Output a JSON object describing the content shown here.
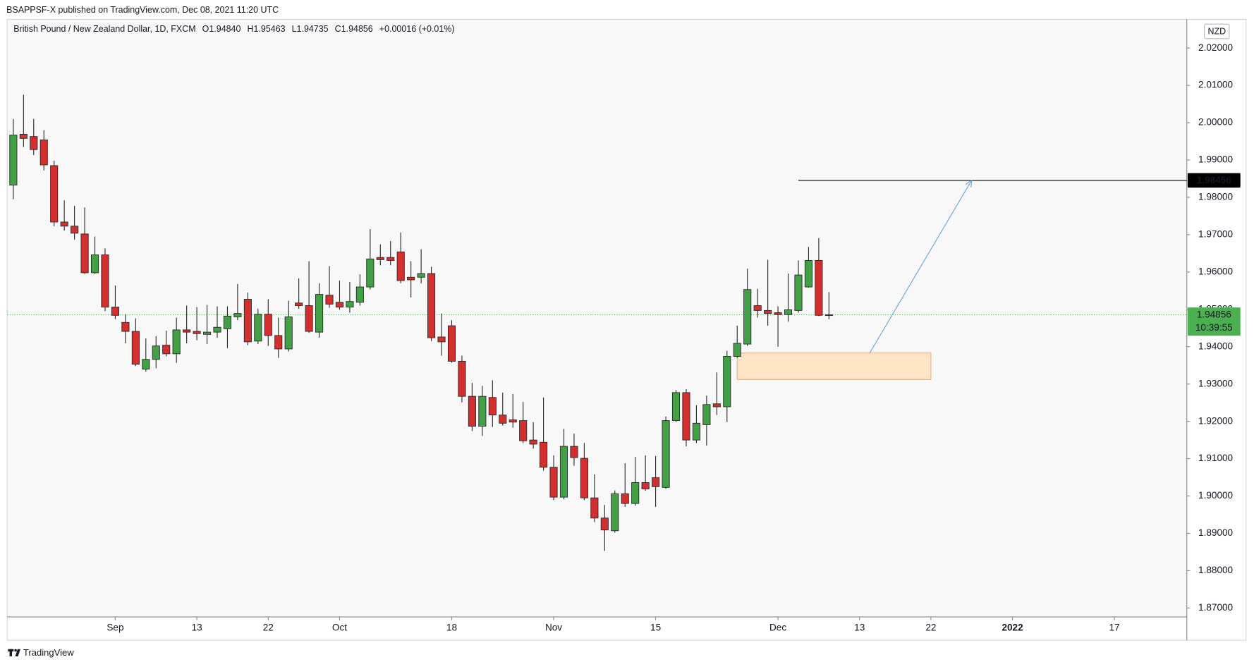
{
  "chart_data": {
    "type": "candlestick",
    "header": "BSAPPSF-X published on TradingView.com, Dec 08, 2021 11:20 UTC",
    "legend": {
      "symbol": "British Pound / New Zealand Dollar, 1D, FXCM",
      "fields": [
        [
          "O",
          "1.94840"
        ],
        [
          "H",
          "1.95463"
        ],
        [
          "L",
          "1.94735"
        ],
        [
          "C",
          "1.94856"
        ]
      ],
      "change": "+0.00016 (+0.01%)"
    },
    "currency": "NZD",
    "brand": "TradingView",
    "up_color": "#43a047",
    "down_color": "#d32f2f",
    "border_color": "#2a2a2a",
    "open": [
      1.9833,
      1.9969,
      1.9963,
      1.9954,
      1.9885,
      1.9734,
      1.9723,
      1.9702,
      1.9598,
      1.9646,
      1.9506,
      1.9465,
      1.9441,
      1.934,
      1.9366,
      1.9404,
      1.9381,
      1.9445,
      1.9441,
      1.9433,
      1.9439,
      1.9448,
      1.948,
      1.9527,
      1.9415,
      1.9487,
      1.943,
      1.9394,
      1.9517,
      1.951,
      1.9439,
      1.9538,
      1.9519,
      1.9506,
      1.9519,
      1.956,
      1.9639,
      1.9639,
      1.9654,
      1.9586,
      1.9586,
      1.9596,
      1.9426,
      1.9456,
      1.9361,
      1.9267,
      1.9187,
      1.9264,
      1.9217,
      1.9204,
      1.9202,
      1.915,
      1.9144,
      1.9077,
      1.8997,
      1.9133,
      1.9101,
      1.8995,
      1.8941,
      1.8907,
      1.9006,
      1.898,
      1.9036,
      1.9049,
      1.9023,
      1.9202,
      1.9277,
      1.915,
      1.9191,
      1.9247,
      1.9239,
      1.9374,
      1.9407,
      1.951,
      1.9497,
      1.9491,
      1.9486,
      1.9497,
      1.956,
      1.9631,
      1.9484
    ],
    "high": [
      2.001,
      2.0075,
      2.001,
      1.998,
      1.9898,
      1.9792,
      1.9777,
      1.9773,
      1.9695,
      1.9663,
      1.9564,
      1.9487,
      1.9476,
      1.9422,
      1.9428,
      1.9443,
      1.9478,
      1.951,
      1.9506,
      1.9512,
      1.9508,
      1.9508,
      1.9568,
      1.9545,
      1.9502,
      1.9527,
      1.9478,
      1.9523,
      1.9583,
      1.9629,
      1.957,
      1.9616,
      1.9577,
      1.9573,
      1.9594,
      1.9715,
      1.9674,
      1.9683,
      1.9706,
      1.9629,
      1.9661,
      1.9614,
      1.9489,
      1.9471,
      1.9376,
      1.9303,
      1.9295,
      1.931,
      1.9277,
      1.9273,
      1.9252,
      1.9198,
      1.9264,
      1.9109,
      1.918,
      1.9167,
      1.9142,
      1.9058,
      1.8976,
      1.9015,
      1.9088,
      1.9105,
      1.9109,
      1.9107,
      1.9213,
      1.9284,
      1.9286,
      1.9243,
      1.9269,
      1.9331,
      1.9389,
      1.9456,
      1.9609,
      1.9555,
      1.9633,
      1.9508,
      1.9596,
      1.9631,
      1.9667,
      1.9691,
      1.95463
    ],
    "low": [
      1.9795,
      1.9935,
      1.9913,
      1.9872,
      1.9723,
      1.9711,
      1.9687,
      1.9595,
      1.9595,
      1.9495,
      1.9474,
      1.9409,
      1.9348,
      1.9333,
      1.9342,
      1.9374,
      1.9357,
      1.9409,
      1.9417,
      1.9407,
      1.9424,
      1.9396,
      1.9471,
      1.9404,
      1.9407,
      1.9402,
      1.937,
      1.9387,
      1.9502,
      1.9437,
      1.9424,
      1.9504,
      1.9499,
      1.9491,
      1.951,
      1.9553,
      1.9618,
      1.9618,
      1.957,
      1.9532,
      1.957,
      1.9415,
      1.9376,
      1.9357,
      1.9251,
      1.9174,
      1.9161,
      1.9185,
      1.9189,
      1.9183,
      1.9142,
      1.9127,
      1.9068,
      1.8989,
      1.8991,
      1.9081,
      1.8989,
      1.893,
      1.8853,
      1.8902,
      1.8971,
      1.8974,
      1.9014,
      1.8971,
      1.9019,
      1.9198,
      1.9133,
      1.9142,
      1.9135,
      1.9217,
      1.9198,
      1.937,
      1.9402,
      1.9478,
      1.9456,
      1.94,
      1.9467,
      1.9491,
      1.9558,
      1.9482,
      1.94735
    ],
    "close": [
      1.9967,
      1.9958,
      1.9928,
      1.9887,
      1.9734,
      1.9723,
      1.9704,
      1.9598,
      1.9646,
      1.9506,
      1.9484,
      1.9441,
      1.9353,
      1.9366,
      1.9402,
      1.9381,
      1.9445,
      1.9439,
      1.9435,
      1.9439,
      1.9452,
      1.9482,
      1.9489,
      1.9413,
      1.9487,
      1.943,
      1.9394,
      1.948,
      1.951,
      1.9441,
      1.954,
      1.9514,
      1.9506,
      1.9521,
      1.956,
      1.9635,
      1.9633,
      1.9631,
      1.9577,
      1.9579,
      1.9596,
      1.9424,
      1.9413,
      1.9361,
      1.9267,
      1.9187,
      1.9267,
      1.9217,
      1.9195,
      1.9198,
      1.9148,
      1.9139,
      1.9077,
      1.8997,
      1.9133,
      1.9103,
      1.8995,
      1.8941,
      1.8909,
      1.9006,
      1.898,
      1.9036,
      1.9019,
      1.9025,
      1.9202,
      1.9277,
      1.915,
      1.9195,
      1.9245,
      1.9239,
      1.9374,
      1.9409,
      1.9553,
      1.9497,
      1.9489,
      1.9486,
      1.9499,
      1.9592,
      1.9631,
      1.9484,
      1.94856
    ],
    "xlim": [
      -0.6,
      115.1
    ],
    "xticks": [
      {
        "value": 10,
        "label": "Sep"
      },
      {
        "value": 18,
        "label": "13"
      },
      {
        "value": 25,
        "label": "22"
      },
      {
        "value": 32,
        "label": "Oct"
      },
      {
        "value": 43,
        "label": "18"
      },
      {
        "value": 53,
        "label": "Nov"
      },
      {
        "value": 63,
        "label": "15"
      },
      {
        "value": 75,
        "label": "Dec"
      },
      {
        "value": 83,
        "label": "13"
      },
      {
        "value": 90,
        "label": "22"
      },
      {
        "value": 98,
        "label": "2022"
      },
      {
        "value": 108,
        "label": "17"
      }
    ],
    "ylim": [
      1.8676,
      2.0277
    ],
    "yticks": [
      {
        "value": 1.87,
        "label": "1.87000"
      },
      {
        "value": 1.88,
        "label": "1.88000"
      },
      {
        "value": 1.89,
        "label": "1.89000"
      },
      {
        "value": 1.9,
        "label": "1.90000"
      },
      {
        "value": 1.91,
        "label": "1.91000"
      },
      {
        "value": 1.92,
        "label": "1.92000"
      },
      {
        "value": 1.93,
        "label": "1.93000"
      },
      {
        "value": 1.94,
        "label": "1.94000"
      },
      {
        "value": 1.95,
        "label": "1.95000"
      },
      {
        "value": 1.96,
        "label": "1.96000"
      },
      {
        "value": 1.97,
        "label": "1.97000"
      },
      {
        "value": 1.98,
        "label": "1.98000"
      },
      {
        "value": 1.99,
        "label": "1.99000"
      },
      {
        "value": 2.0,
        "label": "2.00000"
      },
      {
        "value": 2.01,
        "label": "2.01000"
      },
      {
        "value": 2.02,
        "label": "2.02000"
      }
    ],
    "grid": false,
    "last_price": {
      "label": "1.94856",
      "countdown": "10:39:55",
      "color": "#4caf50"
    },
    "target_line": {
      "value": 1.98456,
      "label": "1.98456",
      "start": 77,
      "color": "#000000"
    },
    "zone": {
      "x": [
        71,
        90
      ],
      "y": [
        1.9312,
        1.9383
      ],
      "fill": "#fde4c4",
      "stroke": "#e8b48a"
    },
    "arrow": {
      "from": [
        84,
        1.9383
      ],
      "to": [
        94,
        1.9846
      ],
      "color": "#6fa3dc"
    }
  }
}
